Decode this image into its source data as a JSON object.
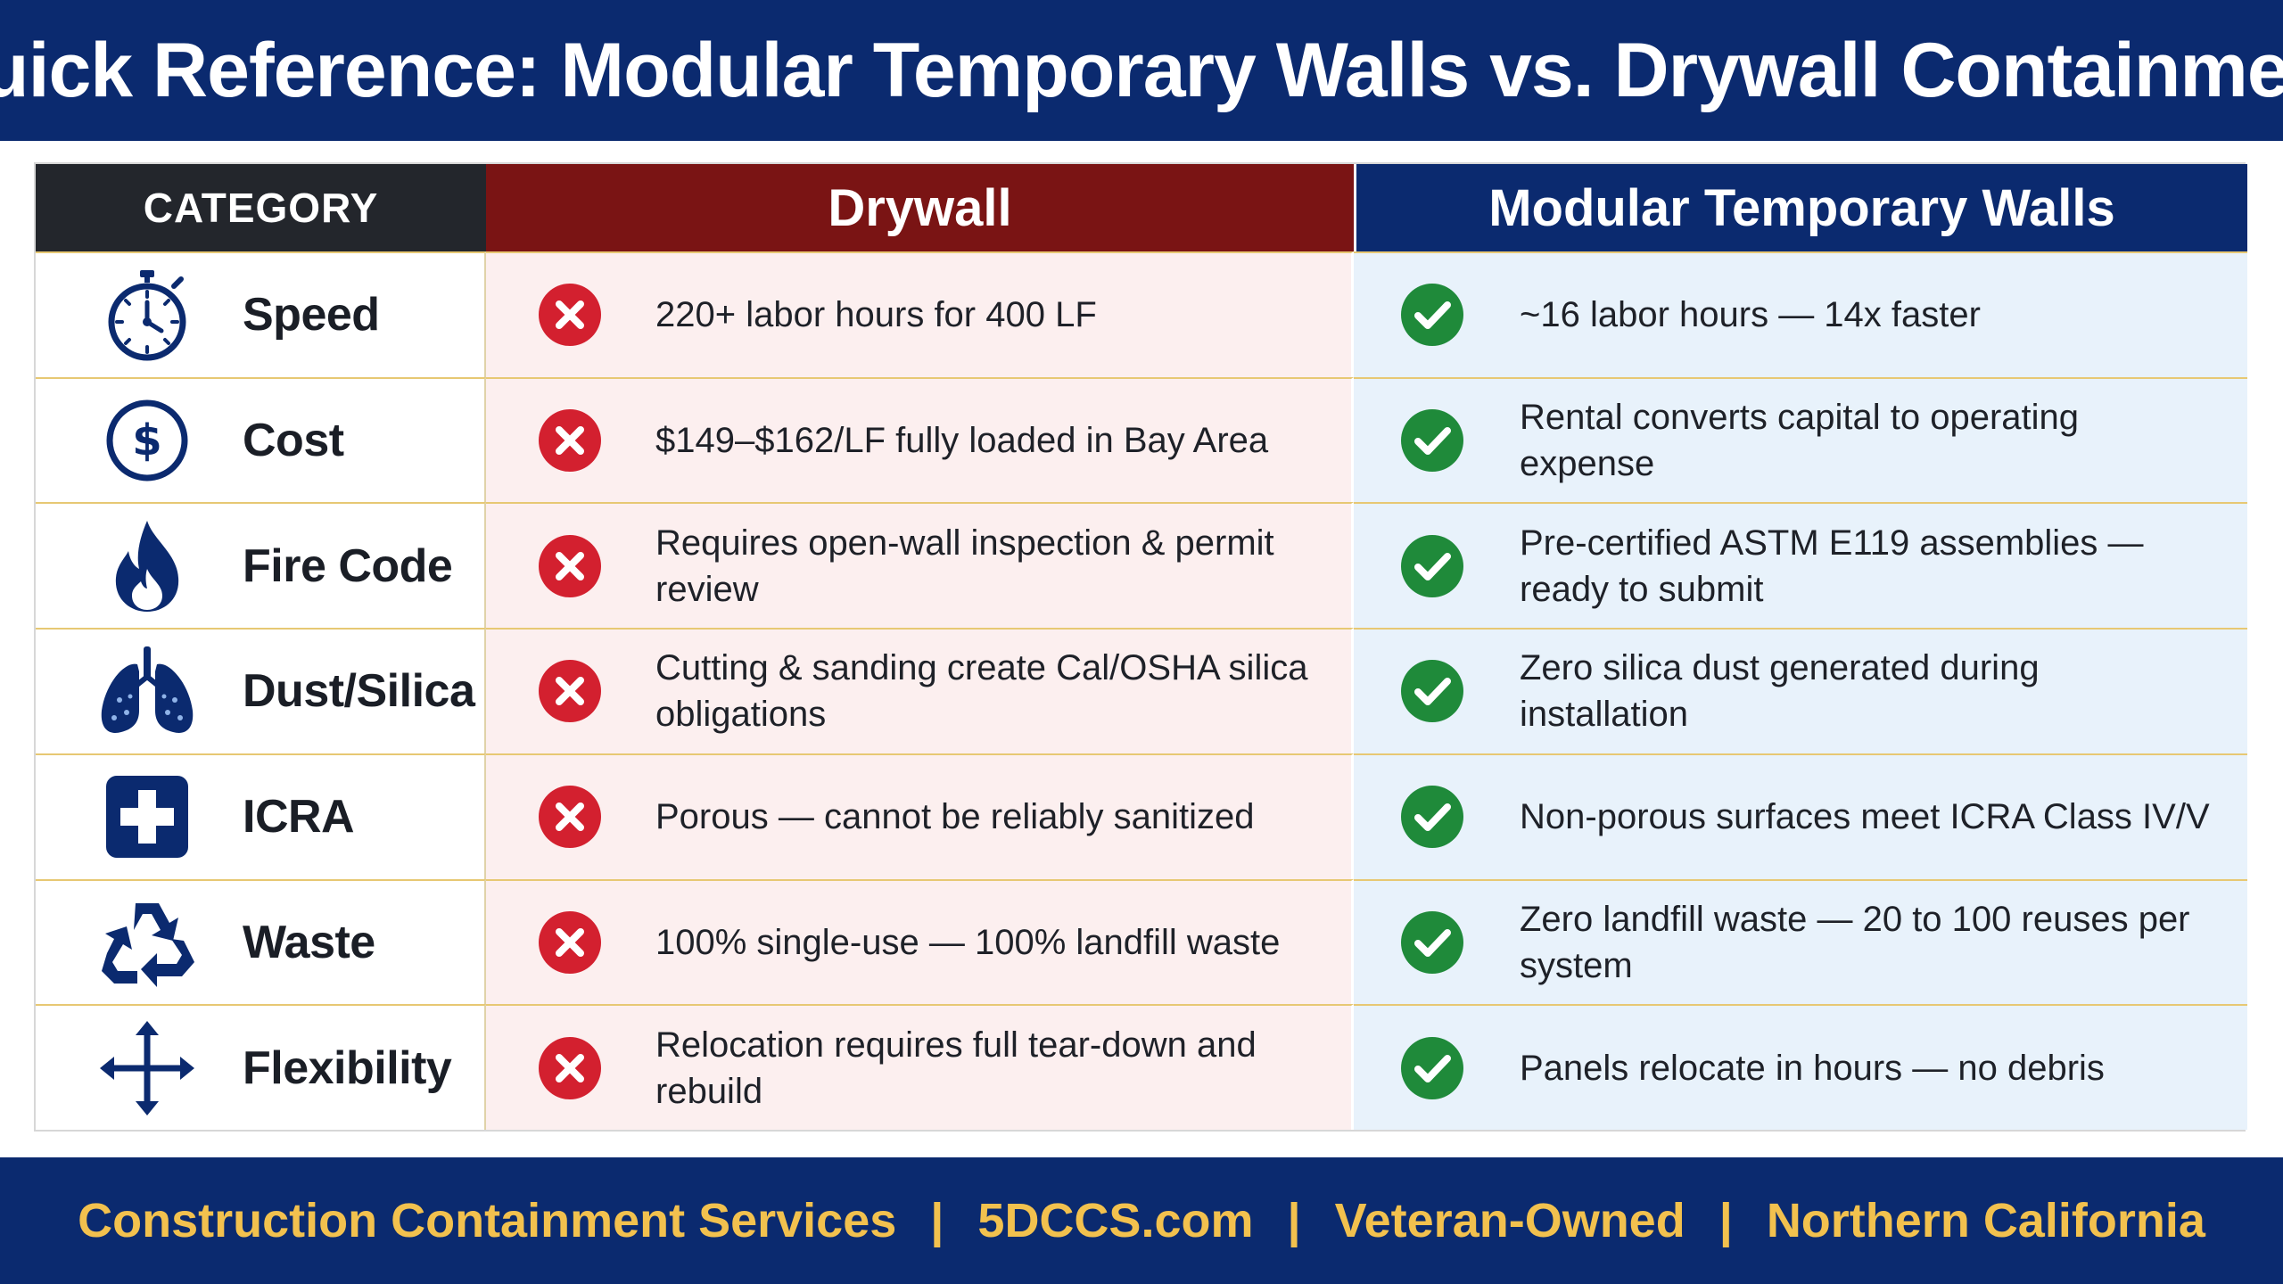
{
  "title": "Quick Reference: Modular Temporary Walls vs. Drywall Containment",
  "columns": {
    "category": "CATEGORY",
    "drywall": "Drywall",
    "modular": "Modular Temporary Walls"
  },
  "rows": [
    {
      "category": "Speed",
      "icon": "stopwatch-icon",
      "drywall": "220+ labor hours for 400 LF",
      "modular": "~16 labor hours — 14x faster"
    },
    {
      "category": "Cost",
      "icon": "dollar-icon",
      "drywall": "$149–$162/LF fully loaded in Bay Area",
      "modular": "Rental converts capital to operating expense"
    },
    {
      "category": "Fire Code",
      "icon": "flame-icon",
      "drywall": "Requires open-wall inspection & permit review",
      "modular": "Pre-certified ASTM E119 assemblies — ready to submit"
    },
    {
      "category": "Dust/Silica",
      "icon": "lungs-icon",
      "drywall": "Cutting & sanding create Cal/OSHA silica obligations",
      "modular": "Zero silica dust generated during installation"
    },
    {
      "category": "ICRA",
      "icon": "medical-cross-icon",
      "drywall": "Porous — cannot be reliably sanitized",
      "modular": "Non-porous surfaces meet ICRA Class IV/V"
    },
    {
      "category": "Waste",
      "icon": "recycle-icon",
      "drywall": "100% single-use — 100% landfill waste",
      "modular": "Zero landfill waste — 20 to 100 reuses per system"
    },
    {
      "category": "Flexibility",
      "icon": "move-arrows-icon",
      "drywall": "Relocation requires full tear-down and rebuild",
      "modular": "Panels relocate in hours — no debris"
    }
  ],
  "footer": {
    "company": "Construction Containment Services",
    "website": "5DCCS.com",
    "ownership": "Veteran-Owned",
    "region": "Northern California",
    "separator": "|"
  },
  "colors": {
    "navy": "#0b2a6f",
    "drywall_red": "#7a1414",
    "x_red": "#d3202f",
    "check_green": "#1f8a3a",
    "gold": "#f2c14e"
  }
}
